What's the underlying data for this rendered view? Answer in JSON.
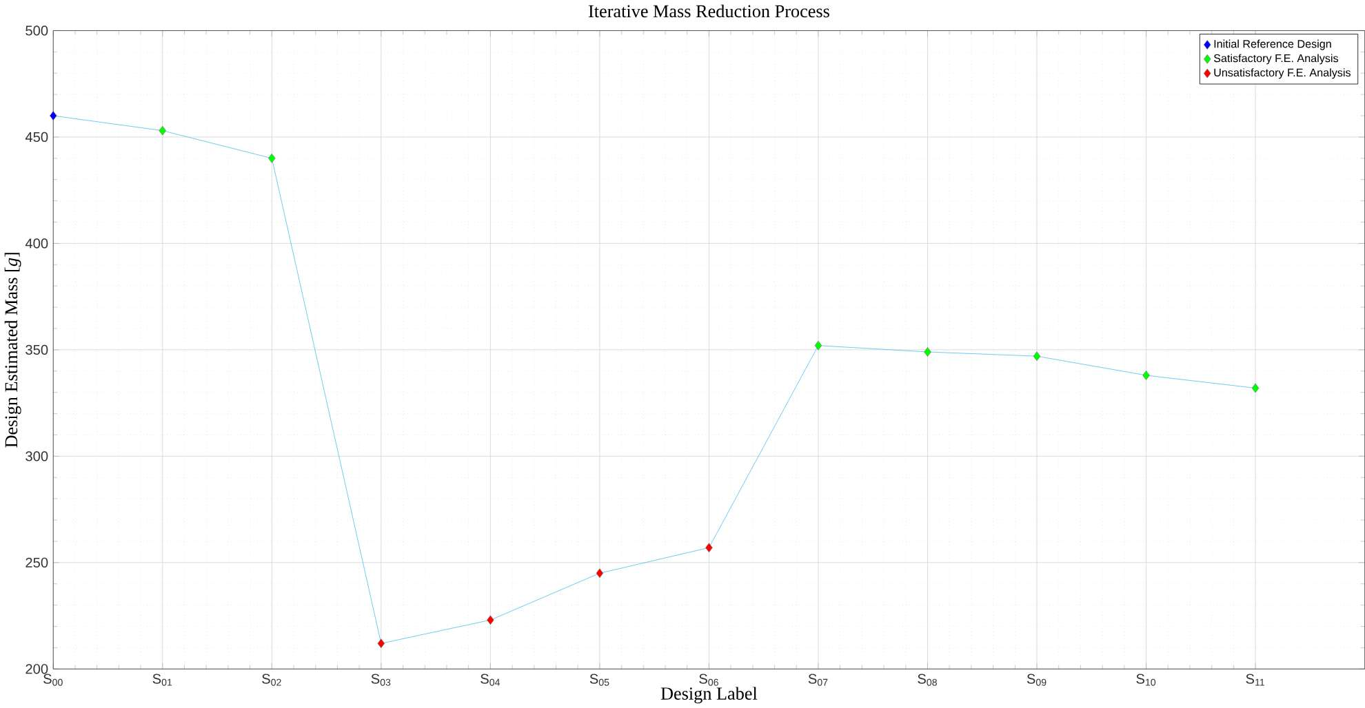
{
  "chart_data": {
    "type": "line",
    "title": "Iterative Mass Reduction Process",
    "xlabel": "Design Label",
    "ylabel": "Design Estimated Mass [*g*]",
    "xlim": [
      0,
      12
    ],
    "ylim": [
      200,
      500
    ],
    "xticks": [
      {
        "value": 0,
        "label": "S$_{00}$"
      },
      {
        "value": 1,
        "label": "S$_{01}$"
      },
      {
        "value": 2,
        "label": "S$_{02}$"
      },
      {
        "value": 3,
        "label": "S$_{03}$"
      },
      {
        "value": 4,
        "label": "S$_{04}$"
      },
      {
        "value": 5,
        "label": "S$_{05}$"
      },
      {
        "value": 6,
        "label": "S$_{06}$"
      },
      {
        "value": 7,
        "label": "S$_{07}$"
      },
      {
        "value": 8,
        "label": "S$_{08}$"
      },
      {
        "value": 9,
        "label": "S$_{09}$"
      },
      {
        "value": 10,
        "label": "S$_{10}$"
      },
      {
        "value": 11,
        "label": "S$_{11}$"
      }
    ],
    "yticks": [
      200,
      250,
      300,
      350,
      400,
      450,
      500
    ],
    "grid": true,
    "legend": "top right",
    "series": [
      {
        "color": "#4dbeee",
        "marker": "none",
        "line_style": "solid",
        "x": [
          0,
          1,
          2,
          3,
          4,
          5,
          6,
          7,
          8,
          9,
          10,
          11
        ],
        "values": [
          460,
          453,
          440,
          212,
          223,
          245,
          257,
          352,
          349,
          347,
          338,
          332
        ]
      },
      {
        "type": "scatter",
        "name": "Initial Reference Design",
        "color": "#0000ff",
        "marker": "diamond",
        "x": [
          0
        ],
        "values": [
          460
        ]
      },
      {
        "type": "scatter",
        "name": "Satisfactory F.E. Analysis",
        "color": "#00ff00",
        "marker": "diamond",
        "x": [
          1,
          2,
          7,
          8,
          9,
          10,
          11
        ],
        "values": [
          453,
          440,
          352,
          349,
          347,
          338,
          332
        ]
      },
      {
        "type": "scatter",
        "name": "Unsatisfactory F.E. Analysis",
        "color": "#ff0000",
        "marker": "diamond",
        "x": [
          3,
          4,
          5,
          6
        ],
        "values": [
          212,
          223,
          245,
          257
        ]
      }
    ]
  }
}
